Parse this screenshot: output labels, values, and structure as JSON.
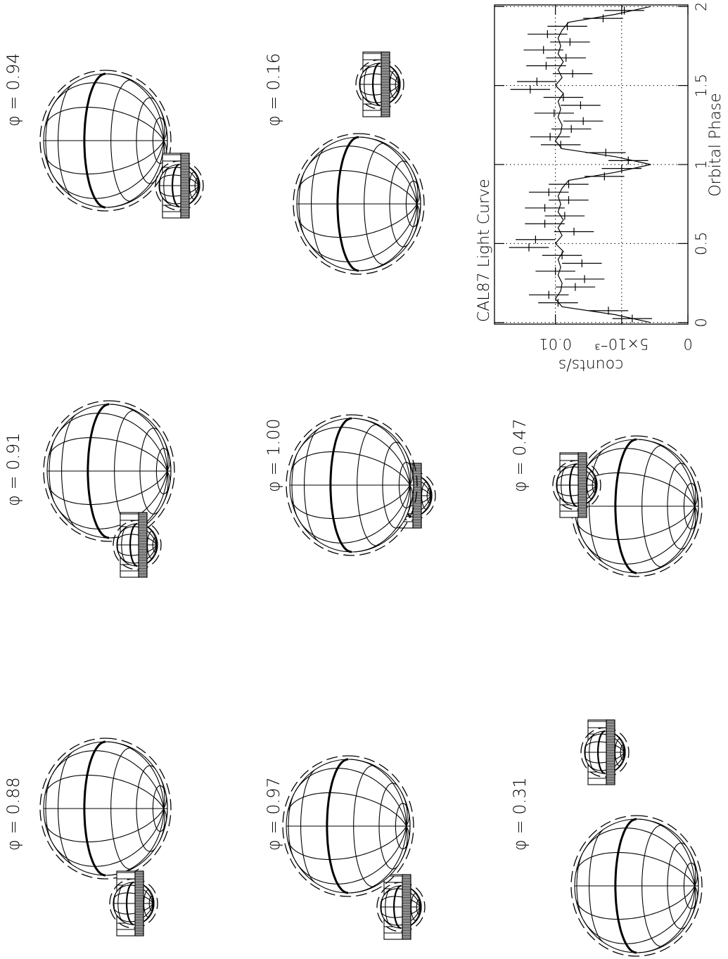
{
  "panels": [
    {
      "label": "φ = 0.88"
    },
    {
      "label": "φ = 0.91"
    },
    {
      "label": "φ = 0.94"
    },
    {
      "label": "φ = 0.97"
    },
    {
      "label": "φ = 1.00"
    },
    {
      "label": "φ = 0.16"
    },
    {
      "label": "φ = 0.31"
    },
    {
      "label": "φ = 0.47"
    }
  ],
  "chart_data": {
    "type": "line",
    "title": "CAL87 Light Curve",
    "x_label": "Orbital Phase",
    "y_label": "counts/s",
    "xlim": [
      -0.01,
      2.01
    ],
    "ylim": [
      0,
      0.0146
    ],
    "xticks": [
      0,
      0.5,
      1,
      1.5,
      2
    ],
    "yticks": [
      0,
      {
        "value": 0.005,
        "label": "5×10⁻³"
      },
      0.01
    ],
    "grid": true,
    "series": [
      {
        "type": "errorbar",
        "color": "#000000",
        "x": [
          0.025,
          0.075,
          0.125,
          0.175,
          0.225,
          0.275,
          0.325,
          0.375,
          0.425,
          0.475,
          0.525,
          0.575,
          0.625,
          0.675,
          0.725,
          0.775,
          0.825,
          0.875,
          0.925,
          0.975,
          1.025,
          1.075,
          1.125,
          1.175,
          1.225,
          1.275,
          1.325,
          1.375,
          1.425,
          1.475,
          1.525,
          1.575,
          1.625,
          1.675,
          1.725,
          1.775,
          1.825,
          1.875,
          1.925,
          1.975
        ],
        "values": [
          0.0042,
          0.006,
          0.0098,
          0.0105,
          0.0085,
          0.0078,
          0.01,
          0.008,
          0.0095,
          0.012,
          0.0115,
          0.0086,
          0.0108,
          0.0093,
          0.0108,
          0.009,
          0.0105,
          0.009,
          0.0063,
          0.005,
          0.0045,
          0.0062,
          0.0096,
          0.0104,
          0.0088,
          0.0079,
          0.0101,
          0.0081,
          0.0094,
          0.0119,
          0.0114,
          0.0087,
          0.0107,
          0.0092,
          0.0109,
          0.0089,
          0.0106,
          0.0091,
          0.0064,
          0.0048
        ],
        "xerr": 0.025,
        "yerr": 0.0015
      },
      {
        "type": "line",
        "color": "#000000",
        "x": [
          0,
          0.05,
          0.1,
          0.15,
          0.2,
          0.25,
          0.3,
          0.35,
          0.4,
          0.45,
          0.5,
          0.55,
          0.6,
          0.65,
          0.7,
          0.75,
          0.8,
          0.85,
          0.9,
          0.95,
          1,
          1.05,
          1.1,
          1.15,
          1.2,
          1.25,
          1.3,
          1.35,
          1.4,
          1.45,
          1.5,
          1.55,
          1.6,
          1.65,
          1.7,
          1.75,
          1.8,
          1.85,
          1.9,
          1.95,
          2
        ],
        "values": [
          0.0028,
          0.0055,
          0.0095,
          0.01,
          0.0096,
          0.0095,
          0.0098,
          0.0096,
          0.0098,
          0.0094,
          0.01,
          0.0095,
          0.0098,
          0.0094,
          0.0098,
          0.0096,
          0.0098,
          0.0095,
          0.009,
          0.0055,
          0.0028,
          0.0055,
          0.0095,
          0.01,
          0.0096,
          0.0095,
          0.0098,
          0.0096,
          0.0098,
          0.0094,
          0.01,
          0.0095,
          0.0098,
          0.0094,
          0.0098,
          0.0096,
          0.0098,
          0.0095,
          0.009,
          0.0055,
          0.0028
        ]
      }
    ]
  }
}
